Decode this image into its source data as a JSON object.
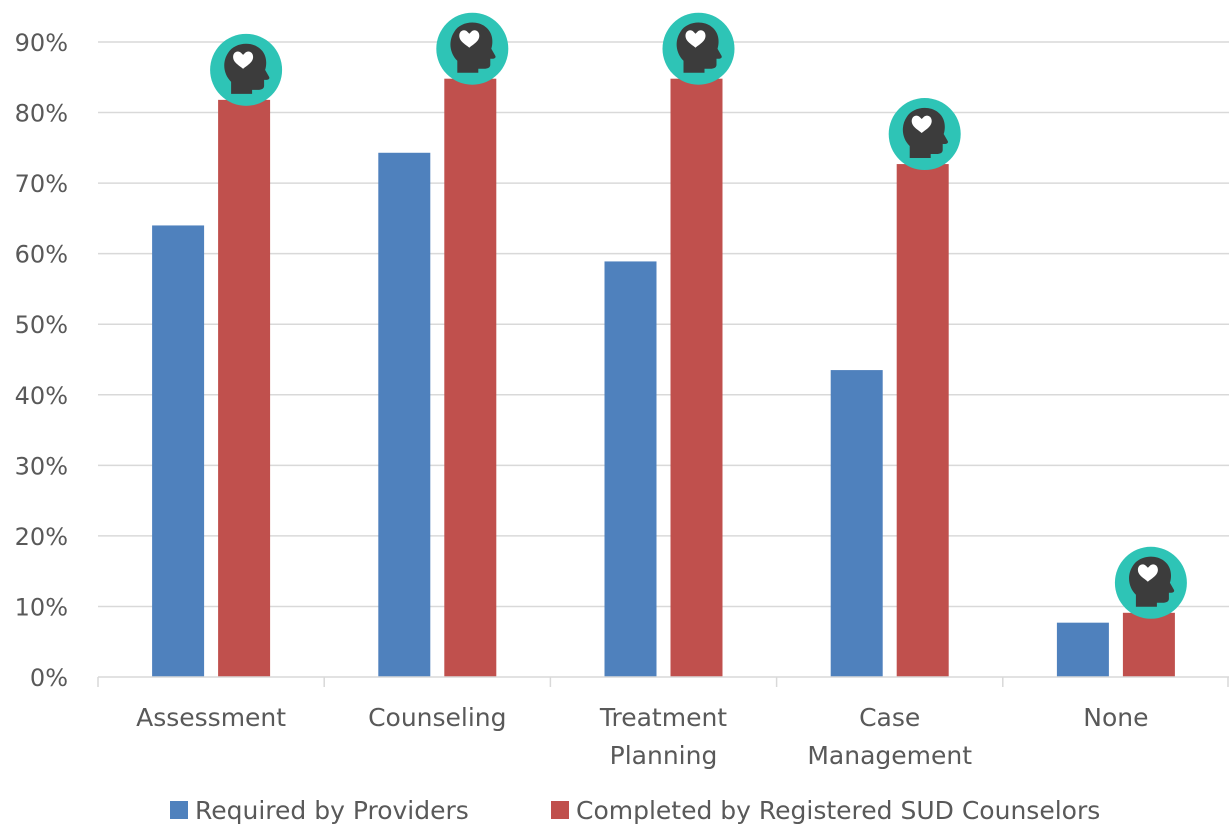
{
  "chart_data": {
    "type": "bar",
    "categories": [
      [
        "Assessment"
      ],
      [
        "Counseling"
      ],
      [
        "Treatment",
        "Planning"
      ],
      [
        "Case",
        "Management"
      ],
      [
        "None"
      ]
    ],
    "series": [
      {
        "name": "Required by Providers",
        "color": "#4F81BD",
        "values": [
          64,
          74.3,
          58.9,
          43.5,
          7.7
        ]
      },
      {
        "name": "Completed by Registered SUD Counselors",
        "color": "#C0504D",
        "values": [
          81.8,
          84.8,
          84.8,
          72.7,
          9.1
        ]
      }
    ],
    "ylim": [
      0,
      90
    ],
    "yticks": [
      {
        "value": 0,
        "label": "0%"
      },
      {
        "value": 10,
        "label": "10%"
      },
      {
        "value": 20,
        "label": "20%"
      },
      {
        "value": 30,
        "label": "30%"
      },
      {
        "value": 40,
        "label": "40%"
      },
      {
        "value": 50,
        "label": "50%"
      },
      {
        "value": 60,
        "label": "60%"
      },
      {
        "value": 70,
        "label": "70%"
      },
      {
        "value": 80,
        "label": "80%"
      },
      {
        "value": 90,
        "label": "90%"
      }
    ],
    "grid": true,
    "legend_position": "bottom",
    "marker_icon": "head-with-heart-icon",
    "marker_color": "#2EC4B6",
    "gridline_color": "#D9D9D9"
  }
}
